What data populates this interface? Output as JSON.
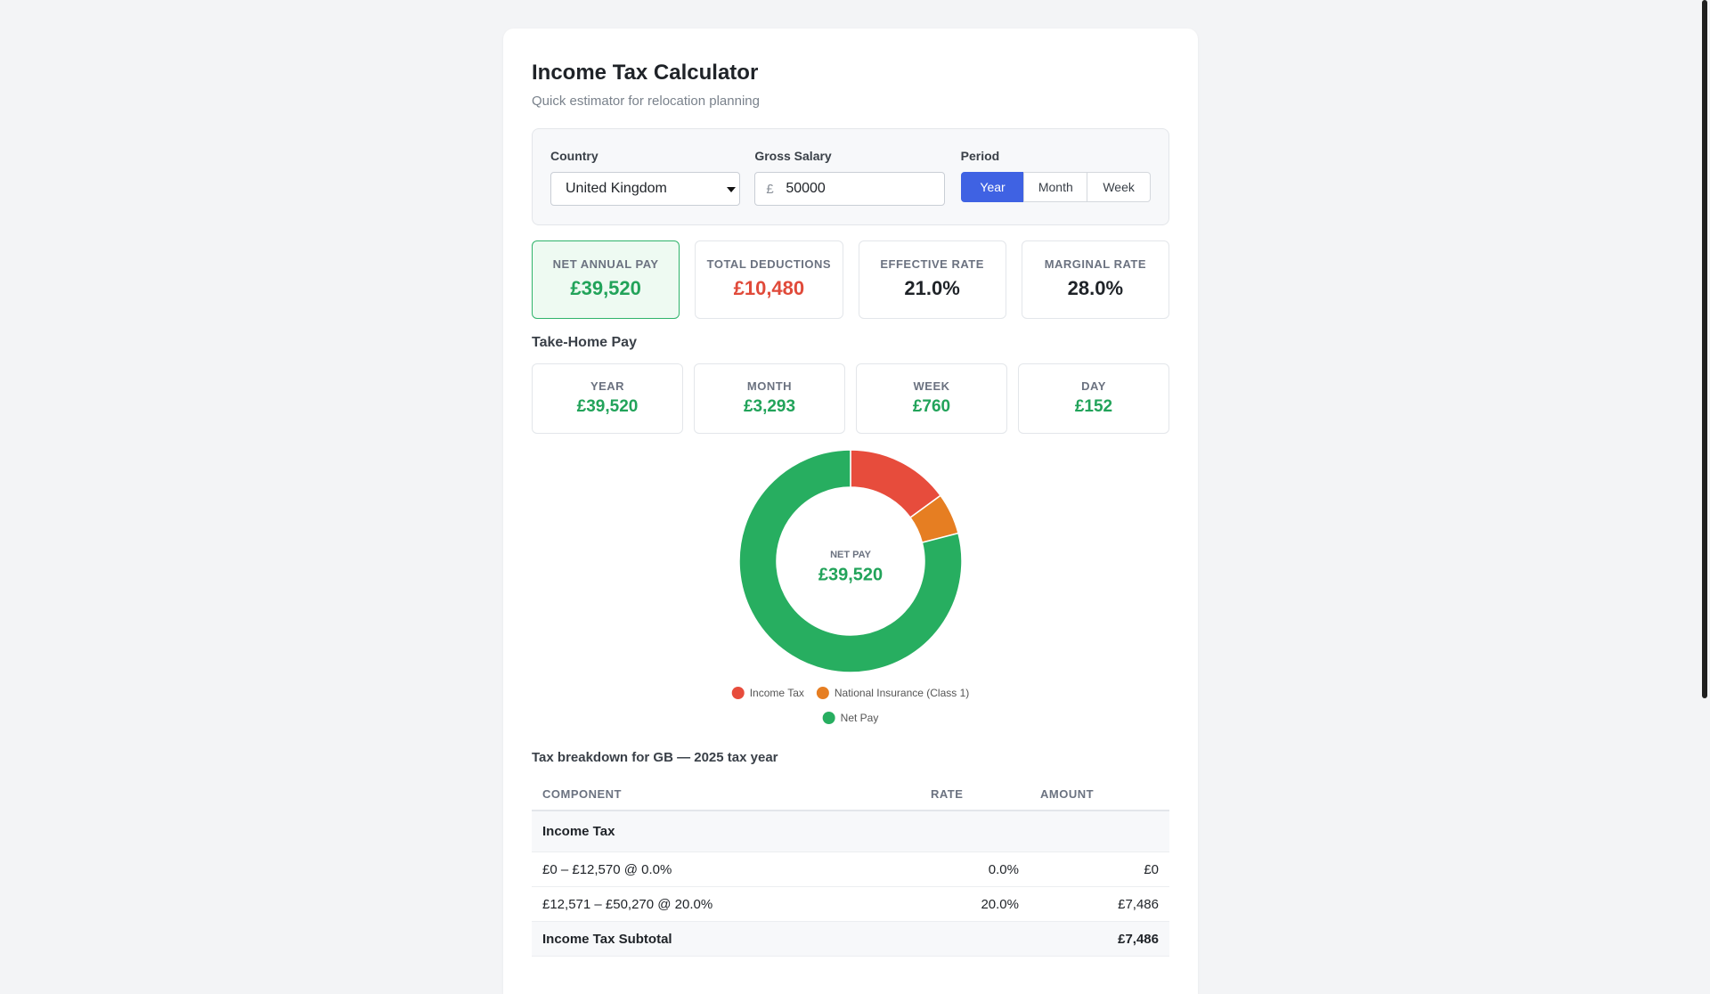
{
  "header": {
    "title": "Income Tax Calculator",
    "subtitle": "Quick estimator for relocation planning"
  },
  "form": {
    "country_label": "Country",
    "country": "United Kingdom",
    "salary_label": "Gross Salary",
    "currency_symbol": "£",
    "salary": "50000",
    "period_label": "Period",
    "periods": [
      "Year",
      "Month",
      "Week"
    ],
    "active_period": 0
  },
  "summary": [
    {
      "label": "NET ANNUAL PAY",
      "value": "£39,520",
      "tone": "positive"
    },
    {
      "label": "TOTAL DEDUCTIONS",
      "value": "£10,480",
      "tone": "negative"
    },
    {
      "label": "EFFECTIVE RATE",
      "value": "21.0%",
      "tone": "neutral"
    },
    {
      "label": "MARGINAL RATE",
      "value": "28.0%",
      "tone": "neutral"
    }
  ],
  "take_home": {
    "title": "Take-Home Pay",
    "items": [
      {
        "label": "YEAR",
        "value": "£39,520"
      },
      {
        "label": "MONTH",
        "value": "£3,293"
      },
      {
        "label": "WEEK",
        "value": "£760"
      },
      {
        "label": "DAY",
        "value": "£152"
      }
    ]
  },
  "chart_data": {
    "type": "pie",
    "donut": true,
    "categories": [
      "Income Tax",
      "National Insurance (Class 1)",
      "Net Pay"
    ],
    "values": [
      7486,
      2994,
      39520
    ],
    "colors": [
      "#e74c3c",
      "#e67e22",
      "#27ae60"
    ],
    "center_label": "NET PAY",
    "center_value": "£39,520"
  },
  "breakdown": {
    "title": "Tax breakdown for GB — 2025 tax year",
    "columns": [
      "COMPONENT",
      "RATE",
      "AMOUNT"
    ],
    "rows": [
      {
        "kind": "group",
        "component": "Income Tax"
      },
      {
        "kind": "band",
        "component": "£0 – £12,570 @ 0.0%",
        "rate": "0.0%",
        "amount": "£0"
      },
      {
        "kind": "band",
        "component": "£12,571 – £50,270 @ 20.0%",
        "rate": "20.0%",
        "amount": "£7,486"
      },
      {
        "kind": "subtotal",
        "component": "Income Tax Subtotal",
        "amount": "£7,486"
      }
    ]
  }
}
